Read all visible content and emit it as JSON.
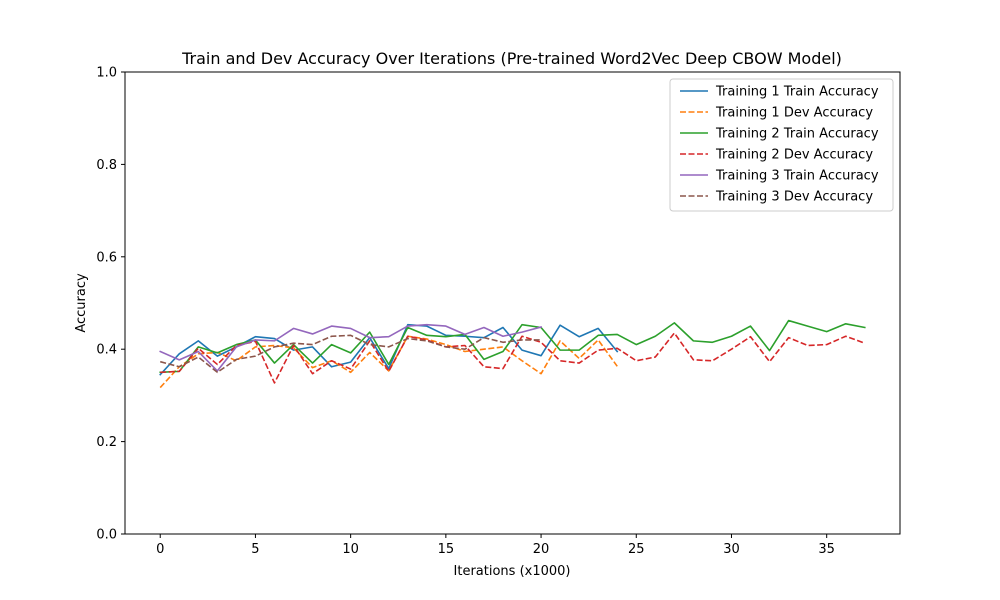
{
  "chart_data": {
    "type": "line",
    "title": "Train and Dev Accuracy Over Iterations (Pre-trained Word2Vec Deep CBOW Model)",
    "xlabel": "Iterations (x1000)",
    "ylabel": "Accuracy",
    "xlim": [
      -1.85,
      38.85
    ],
    "ylim": [
      0,
      1.0
    ],
    "xticks": [
      0,
      5,
      10,
      15,
      20,
      25,
      30,
      35
    ],
    "yticks": [
      0.0,
      0.2,
      0.4,
      0.6,
      0.8,
      1.0
    ],
    "ytick_labels": [
      "0.0",
      "0.2",
      "0.4",
      "0.6",
      "0.8",
      "1.0"
    ],
    "grid": false,
    "legend_position": "top-right",
    "series": [
      {
        "name": "Training 1 Train Accuracy",
        "color": "#1f77b4",
        "style": "solid",
        "x": [
          0,
          1,
          2,
          3,
          4,
          5,
          6,
          7,
          8,
          9,
          10,
          11,
          12,
          13,
          14,
          15,
          16,
          17,
          18,
          19,
          20,
          21,
          22,
          23,
          24
        ],
        "y": [
          0.345,
          0.39,
          0.418,
          0.385,
          0.405,
          0.427,
          0.423,
          0.398,
          0.405,
          0.362,
          0.372,
          0.425,
          0.358,
          0.453,
          0.45,
          0.43,
          0.428,
          0.425,
          0.447,
          0.398,
          0.386,
          0.452,
          0.427,
          0.445,
          0.395
        ]
      },
      {
        "name": "Training 1 Dev Accuracy",
        "color": "#ff7f0e",
        "style": "dashed",
        "x": [
          0,
          1,
          2,
          3,
          4,
          5,
          6,
          7,
          8,
          9,
          10,
          11,
          12,
          13,
          14,
          15,
          16,
          17,
          18,
          19,
          20,
          21,
          22,
          23,
          24
        ],
        "y": [
          0.317,
          0.362,
          0.39,
          0.393,
          0.375,
          0.405,
          0.408,
          0.403,
          0.36,
          0.375,
          0.35,
          0.393,
          0.353,
          0.428,
          0.422,
          0.41,
          0.395,
          0.4,
          0.405,
          0.375,
          0.347,
          0.418,
          0.38,
          0.42,
          0.363
        ]
      },
      {
        "name": "Training 2 Train Accuracy",
        "color": "#2ca02c",
        "style": "solid",
        "x": [
          0,
          1,
          2,
          3,
          4,
          5,
          6,
          7,
          8,
          9,
          10,
          11,
          12,
          13,
          14,
          15,
          16,
          17,
          18,
          19,
          20,
          21,
          22,
          23,
          24,
          25,
          26,
          27,
          28,
          29,
          30,
          31,
          32,
          33,
          34,
          35,
          36,
          37
        ],
        "y": [
          0.35,
          0.352,
          0.405,
          0.392,
          0.41,
          0.42,
          0.37,
          0.41,
          0.37,
          0.41,
          0.392,
          0.437,
          0.367,
          0.447,
          0.43,
          0.427,
          0.432,
          0.378,
          0.395,
          0.453,
          0.447,
          0.398,
          0.398,
          0.43,
          0.432,
          0.41,
          0.428,
          0.457,
          0.418,
          0.415,
          0.428,
          0.45,
          0.397,
          0.462,
          0.45,
          0.438,
          0.455,
          0.447
        ]
      },
      {
        "name": "Training 2 Dev Accuracy",
        "color": "#d62728",
        "style": "dashed",
        "x": [
          0,
          1,
          2,
          3,
          4,
          5,
          6,
          7,
          8,
          9,
          10,
          11,
          12,
          13,
          14,
          15,
          16,
          17,
          18,
          19,
          20,
          21,
          22,
          23,
          24,
          25,
          26,
          27,
          28,
          29,
          30,
          31,
          32,
          33,
          34,
          35,
          36,
          37
        ],
        "y": [
          0.35,
          0.352,
          0.402,
          0.367,
          0.408,
          0.417,
          0.327,
          0.408,
          0.347,
          0.375,
          0.357,
          0.418,
          0.352,
          0.428,
          0.42,
          0.405,
          0.408,
          0.362,
          0.358,
          0.428,
          0.415,
          0.375,
          0.37,
          0.398,
          0.402,
          0.375,
          0.383,
          0.435,
          0.377,
          0.375,
          0.4,
          0.427,
          0.373,
          0.425,
          0.408,
          0.41,
          0.428,
          0.413
        ]
      },
      {
        "name": "Training 3 Train Accuracy",
        "color": "#9467bd",
        "style": "solid",
        "x": [
          0,
          1,
          2,
          3,
          4,
          5,
          6,
          7,
          8,
          9,
          10,
          11,
          12,
          13,
          14,
          15,
          16,
          17,
          18,
          19,
          20
        ],
        "y": [
          0.395,
          0.377,
          0.395,
          0.353,
          0.405,
          0.42,
          0.418,
          0.445,
          0.433,
          0.45,
          0.445,
          0.425,
          0.427,
          0.45,
          0.453,
          0.45,
          0.432,
          0.447,
          0.428,
          0.437,
          0.448
        ]
      },
      {
        "name": "Training 3 Dev Accuracy",
        "color": "#8c564b",
        "style": "dashed",
        "x": [
          0,
          1,
          2,
          3,
          4,
          5,
          6,
          7,
          8,
          9,
          10,
          11,
          12,
          13,
          14,
          15,
          16,
          17,
          18,
          19,
          20
        ],
        "y": [
          0.373,
          0.362,
          0.383,
          0.35,
          0.378,
          0.385,
          0.405,
          0.413,
          0.41,
          0.428,
          0.43,
          0.41,
          0.405,
          0.423,
          0.418,
          0.405,
          0.4,
          0.425,
          0.415,
          0.42,
          0.42
        ]
      }
    ]
  }
}
